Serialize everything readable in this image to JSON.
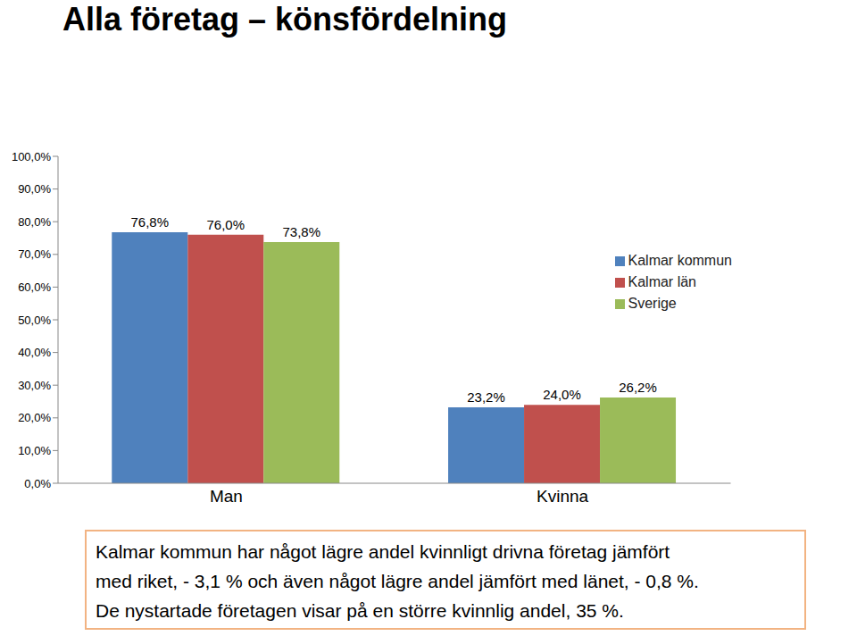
{
  "chart_data": {
    "type": "bar",
    "title": "Alla företag – könsfördelning",
    "categories": [
      "Man",
      "Kvinna"
    ],
    "series": [
      {
        "name": "Kalmar kommun",
        "color": "#4f81bd",
        "values": [
          76.8,
          23.2
        ],
        "value_labels": [
          "76,8%",
          "23,2%"
        ]
      },
      {
        "name": "Kalmar län",
        "color": "#c0504d",
        "values": [
          76.0,
          24.0
        ],
        "value_labels": [
          "76,0%",
          "24,0%"
        ]
      },
      {
        "name": "Sverige",
        "color": "#9bbb59",
        "values": [
          73.8,
          26.2
        ],
        "value_labels": [
          "73,8%",
          "26,2%"
        ]
      }
    ],
    "ylim": [
      0,
      100
    ],
    "yticks": [
      {
        "value": 0,
        "label": "0,0%"
      },
      {
        "value": 10,
        "label": "10,0%"
      },
      {
        "value": 20,
        "label": "20,0%"
      },
      {
        "value": 30,
        "label": "30,0%"
      },
      {
        "value": 40,
        "label": "40,0%"
      },
      {
        "value": 50,
        "label": "50,0%"
      },
      {
        "value": 60,
        "label": "60,0%"
      },
      {
        "value": 70,
        "label": "70,0%"
      },
      {
        "value": 80,
        "label": "80,0%"
      },
      {
        "value": 90,
        "label": "90,0%"
      },
      {
        "value": 100,
        "label": "100,0%"
      }
    ],
    "grid": false,
    "legend": "right",
    "data_labels": true,
    "annotations": [
      "Kalmar kommun har något lägre andel kvinnligt drivna företag jämfört",
      "med riket, - 3,1 % och även något lägre andel jämfört med länet, - 0,8 %.",
      "De nystartade företagen visar på en större kvinnlig andel, 35 %."
    ]
  }
}
